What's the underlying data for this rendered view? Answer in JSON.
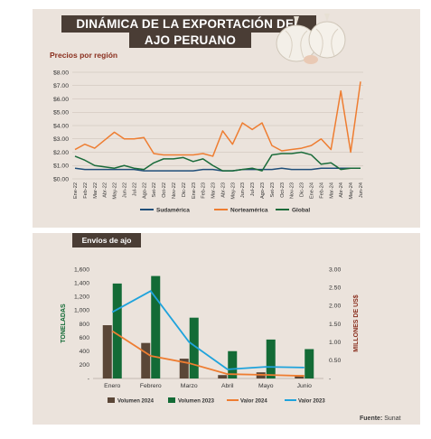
{
  "title_line1": "DINÁMICA DE LA EXPORTACIÓN DEL",
  "title_line2": "AJO PERUANO",
  "source_label": "Fuente:",
  "source_value": "Sunat",
  "colors": {
    "sudamerica": "#1f4e79",
    "norteamerica": "#ee7d31",
    "global": "#1a6b3a",
    "vol2024": "#5a4637",
    "vol2023": "#136b36",
    "val2024": "#ee7d31",
    "val2023": "#1fa3dc",
    "panel": "#ebe3dc",
    "header": "#4a3d35"
  },
  "chart_data": [
    {
      "type": "line",
      "title": "Precios por región",
      "y_ticks": [
        "$0.00",
        "$1.00",
        "$2.00",
        "$3.00",
        "$4.00",
        "$5.00",
        "$6.00",
        "$7.00",
        "$8.00"
      ],
      "ylim": [
        0,
        8
      ],
      "x": [
        "Ene-22",
        "Feb-22",
        "Mar-22",
        "Abr-22",
        "May-22",
        "Jun-22",
        "Jul-22",
        "Ago-22",
        "Sept-22",
        "Oct-22",
        "Nov-22",
        "Dic-22",
        "Ene-23",
        "Feb-23",
        "Mar-23",
        "Abr-23",
        "May-23",
        "Jun-23",
        "Jul-23",
        "Ago-23",
        "Sept-23",
        "Oct-23",
        "Nov-23",
        "Dic-23",
        "Ene-24",
        "Feb-24",
        "Mar-24",
        "Abr-24",
        "May-24",
        "Jun-24"
      ],
      "x_tick_labels": [
        "Ene-22",
        "Feb-22",
        "Mar-22",
        "Abr-22",
        "May-22",
        "Jun-22",
        "Jul-22",
        "Ago-22",
        "Set-22",
        "Oct-22",
        "Nov-22",
        "Dic-22",
        "Ene-23",
        "Feb-23",
        "Mar-23",
        "Abr-23",
        "May-23",
        "Jun-23",
        "Jul-23",
        "Ago-23",
        "Set-23",
        "Oct-23",
        "Nov-23",
        "Dic-23",
        "Ene-24",
        "Feb-24",
        "Mar-24",
        "Abr-24",
        "May-24",
        "Jun-24"
      ],
      "series": [
        {
          "name": "Sudamérica",
          "values": [
            0.8,
            0.7,
            0.7,
            0.7,
            0.7,
            0.7,
            0.7,
            0.6,
            0.6,
            0.6,
            0.6,
            0.6,
            0.6,
            0.7,
            0.7,
            0.6,
            0.6,
            0.7,
            0.7,
            0.7,
            0.7,
            0.8,
            0.7,
            0.7,
            0.7,
            0.8,
            0.8,
            0.8,
            0.8,
            0.8
          ]
        },
        {
          "name": "Norteamérica",
          "values": [
            2.2,
            2.6,
            2.3,
            2.9,
            3.5,
            3.0,
            3.0,
            3.1,
            1.9,
            1.8,
            1.8,
            1.8,
            1.8,
            1.9,
            1.7,
            3.6,
            2.6,
            4.2,
            3.7,
            4.2,
            2.5,
            2.1,
            2.2,
            2.3,
            2.5,
            3.0,
            2.2,
            6.6,
            2.0,
            7.3
          ]
        },
        {
          "name": "Global",
          "values": [
            1.7,
            1.4,
            1.0,
            0.9,
            0.8,
            1.0,
            0.8,
            0.7,
            1.2,
            1.5,
            1.5,
            1.6,
            1.3,
            1.5,
            1.0,
            0.6,
            0.6,
            0.7,
            0.8,
            0.6,
            1.8,
            1.9,
            1.9,
            2.0,
            1.8,
            1.1,
            1.2,
            0.7,
            0.8,
            0.8
          ]
        }
      ],
      "legend": "bottom"
    },
    {
      "type": "bar",
      "title": "Envíos de ajo",
      "categories": [
        "Enero",
        "Febrero",
        "Marzo",
        "Abril",
        "Mayo",
        "Junio"
      ],
      "ylabel_left": "TONELADAS",
      "ylabel_right": "MILLONES DE US$",
      "ylim_left": [
        0,
        1600
      ],
      "ylim_right": [
        0,
        3
      ],
      "left_ticks": [
        "-",
        "200",
        "400",
        "600",
        "800",
        "1,000",
        "1,200",
        "1,400",
        "1,600"
      ],
      "right_ticks": [
        "-",
        "0.50",
        "1.00",
        "1.50",
        "2.00",
        "2.50",
        "3.00"
      ],
      "series": [
        {
          "name": "Volumen 2024",
          "kind": "bar",
          "values": [
            780,
            520,
            290,
            50,
            90,
            50
          ]
        },
        {
          "name": "Volumen 2023",
          "kind": "bar",
          "values": [
            1390,
            1500,
            890,
            400,
            570,
            430
          ]
        },
        {
          "name": "Valor 2024",
          "kind": "line",
          "values": [
            1.3,
            0.62,
            0.42,
            0.12,
            0.1,
            0.07
          ]
        },
        {
          "name": "Valor 2023",
          "kind": "line",
          "values": [
            1.82,
            2.4,
            1.0,
            0.25,
            0.32,
            0.3
          ]
        }
      ],
      "legend": "bottom"
    }
  ]
}
